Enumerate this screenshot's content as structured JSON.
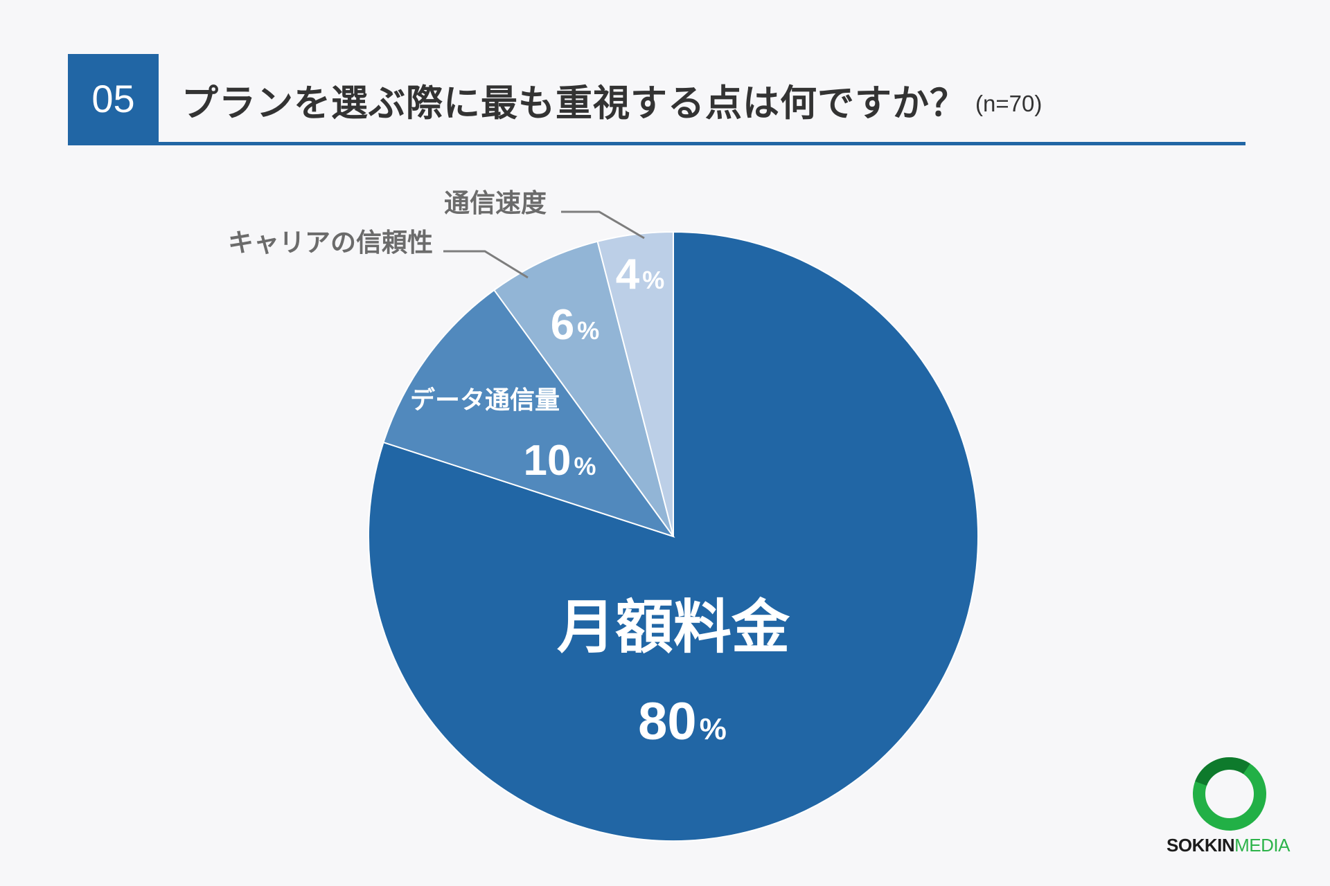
{
  "header": {
    "number": "05",
    "title": "プランを選ぶ際に最も重視する点は何ですか？",
    "sample": "(n=70)"
  },
  "chart_data": {
    "type": "pie",
    "categories": [
      "月額料金",
      "データ通信量",
      "キャリアの信頼性",
      "通信速度"
    ],
    "values": [
      80,
      10,
      6,
      4
    ],
    "unit": "%",
    "colors": [
      "#2166a5",
      "#5189bd",
      "#92b5d6",
      "#bccfe7"
    ],
    "start": "12 o'clock",
    "direction": "clockwise"
  },
  "brand": {
    "word1": "SOKKIN",
    "word2": "MEDIA"
  }
}
